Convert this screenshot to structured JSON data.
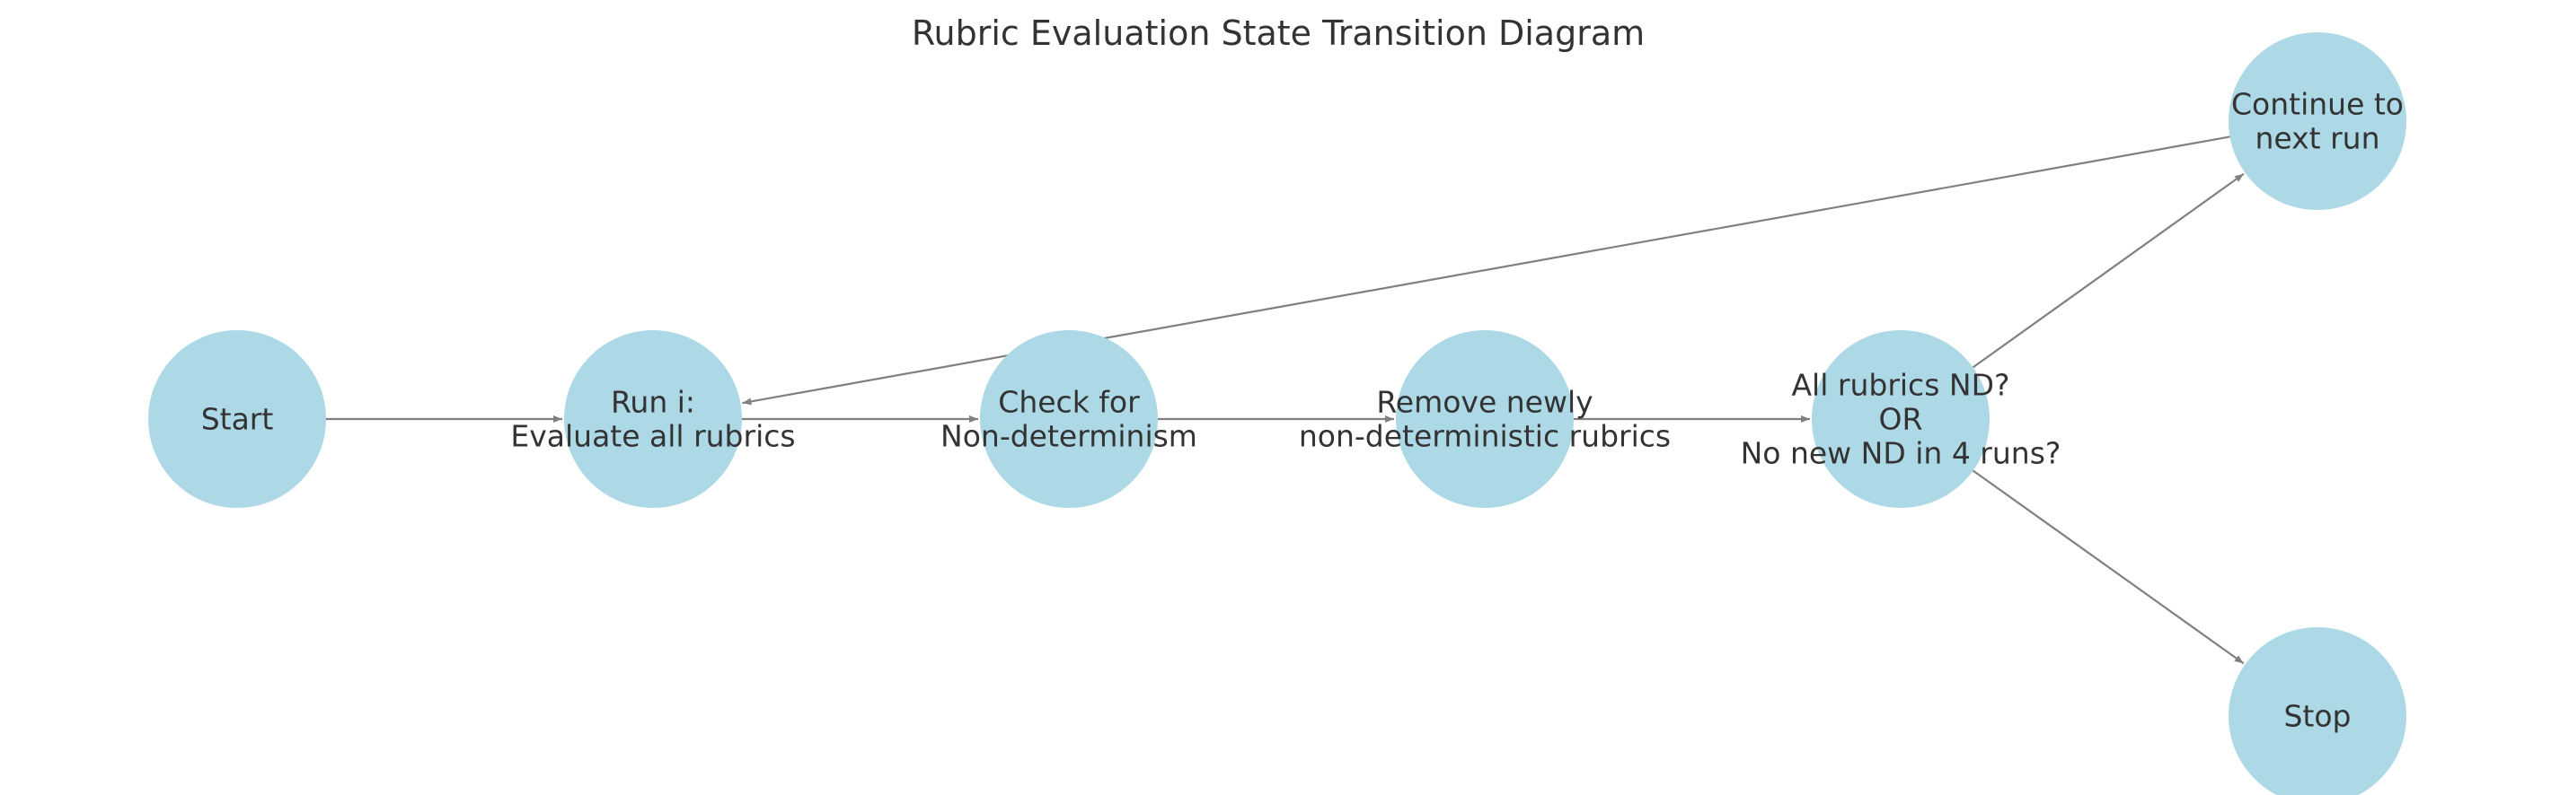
{
  "diagram": {
    "title": "Rubric Evaluation State Transition Diagram",
    "node_color": "#add8e6",
    "edge_color": "#808080",
    "text_color": "#333333",
    "nodes": [
      {
        "id": "start",
        "lines": [
          "Start"
        ]
      },
      {
        "id": "run",
        "lines": [
          "Run i:",
          "Evaluate all rubrics"
        ]
      },
      {
        "id": "check",
        "lines": [
          "Check for",
          "Non-determinism"
        ]
      },
      {
        "id": "remove",
        "lines": [
          "Remove newly",
          "non-deterministic rubrics"
        ]
      },
      {
        "id": "decision",
        "lines": [
          "All rubrics ND?",
          "OR",
          "No new ND in 4 runs?"
        ]
      },
      {
        "id": "continue",
        "lines": [
          "Continue to",
          "next run"
        ]
      },
      {
        "id": "stop",
        "lines": [
          "Stop"
        ]
      }
    ],
    "edges": [
      {
        "from": "start",
        "to": "run"
      },
      {
        "from": "run",
        "to": "check"
      },
      {
        "from": "check",
        "to": "remove"
      },
      {
        "from": "remove",
        "to": "decision"
      },
      {
        "from": "decision",
        "to": "continue"
      },
      {
        "from": "decision",
        "to": "stop"
      },
      {
        "from": "continue",
        "to": "run"
      }
    ]
  }
}
